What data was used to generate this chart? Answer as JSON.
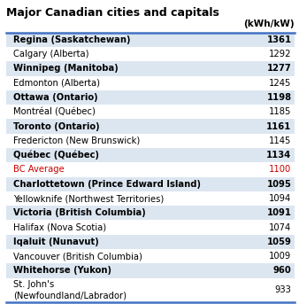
{
  "title": "Major Canadian cities and capitals",
  "unit_header": "(kWh/kW)",
  "rows": [
    {
      "city": "Regina (Saskatchewan)",
      "value": "1361",
      "bold": true,
      "bg": "#dce6f1"
    },
    {
      "city": "Calgary (Alberta)",
      "value": "1292",
      "bold": false,
      "bg": "#ffffff"
    },
    {
      "city": "Winnipeg (Manitoba)",
      "value": "1277",
      "bold": true,
      "bg": "#dce6f1"
    },
    {
      "city": "Edmonton (Alberta)",
      "value": "1245",
      "bold": false,
      "bg": "#ffffff"
    },
    {
      "city": "Ottawa (Ontario)",
      "value": "1198",
      "bold": true,
      "bg": "#dce6f1"
    },
    {
      "city": "Montréal (Québec)",
      "value": "1185",
      "bold": false,
      "bg": "#ffffff"
    },
    {
      "city": "Toronto (Ontario)",
      "value": "1161",
      "bold": true,
      "bg": "#dce6f1"
    },
    {
      "city": "Fredericton (New Brunswick)",
      "value": "1145",
      "bold": false,
      "bg": "#ffffff"
    },
    {
      "city": "Québec (Québec)",
      "value": "1134",
      "bold": true,
      "bg": "#dce6f1"
    },
    {
      "city": "BC Average",
      "value": "1100",
      "bold": false,
      "bg": "#ffffff",
      "special_color": "#cc0000"
    },
    {
      "city": "Charlottetown (Prince Edward Island)",
      "value": "1095",
      "bold": true,
      "bg": "#dce6f1"
    },
    {
      "city": "Yellowknife (Northwest Territories)",
      "value": "1094",
      "bold": false,
      "bg": "#ffffff"
    },
    {
      "city": "Victoria (British Columbia)",
      "value": "1091",
      "bold": true,
      "bg": "#dce6f1"
    },
    {
      "city": "Halifax (Nova Scotia)",
      "value": "1074",
      "bold": false,
      "bg": "#ffffff"
    },
    {
      "city": "Iqaluit (Nunavut)",
      "value": "1059",
      "bold": true,
      "bg": "#dce6f1"
    },
    {
      "city": "Vancouver (British Columbia)",
      "value": "1009",
      "bold": false,
      "bg": "#ffffff"
    },
    {
      "city": "Whitehorse (Yukon)",
      "value": "960",
      "bold": true,
      "bg": "#dce6f1"
    },
    {
      "city": "St. John's\n(Newfoundland/Labrador)",
      "value": "933",
      "bold": false,
      "bg": "#ffffff"
    }
  ],
  "border_color": "#4472c4",
  "title_fontsize": 9.0,
  "row_fontsize": 7.2,
  "header_fontsize": 7.5
}
